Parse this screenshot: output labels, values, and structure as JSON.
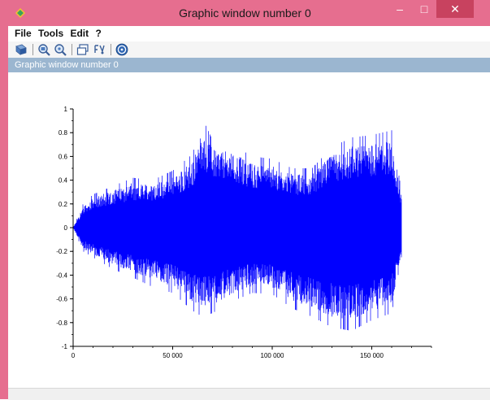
{
  "window": {
    "title": "Graphic window number 0",
    "minimize_glyph": "–",
    "maximize_glyph": "□",
    "close_glyph": "✕",
    "frame_color": "#e66e8f",
    "close_color": "#c8425f"
  },
  "menu": {
    "file": "File",
    "tools": "Tools",
    "edit": "Edit",
    "help": "?"
  },
  "toolbar": {
    "icons": [
      "rotate-icon",
      "zoom-in-icon",
      "zoom-out-icon",
      "window-icon",
      "data-tip-icon",
      "help-icon"
    ]
  },
  "figure": {
    "header": "Graphic window number 0",
    "header_color": "#9bb6d0"
  },
  "chart_data": {
    "type": "line",
    "series_color": "#0000ff",
    "xlim": [
      0,
      180000
    ],
    "ylim": [
      -1,
      1
    ],
    "x_ticks": [
      0,
      50000,
      100000,
      150000
    ],
    "x_tick_labels": [
      "0",
      "50 000",
      "100 000",
      "150 000"
    ],
    "y_ticks": [
      1,
      0.8,
      0.6,
      0.4,
      0.2,
      0,
      -0.2,
      -0.4,
      -0.6,
      -0.8,
      -1
    ],
    "y_tick_labels": [
      "1",
      "0.8",
      "0.6",
      "0.4",
      "0.2",
      "0",
      "-0.2",
      "-0.4",
      "-0.6",
      "-0.8",
      "-1"
    ],
    "n_samples": 165000,
    "envelope": {
      "x": [
        0,
        5000,
        10000,
        20000,
        30000,
        40000,
        50000,
        60000,
        65000,
        70000,
        80000,
        90000,
        100000,
        110000,
        120000,
        130000,
        140000,
        150000,
        160000,
        165000
      ],
      "upper": [
        0,
        0.2,
        0.28,
        0.35,
        0.42,
        0.4,
        0.48,
        0.62,
        0.92,
        0.74,
        0.7,
        0.6,
        0.58,
        0.5,
        0.5,
        0.68,
        0.76,
        0.78,
        0.82,
        0.3
      ],
      "lower": [
        0,
        -0.2,
        -0.25,
        -0.35,
        -0.42,
        -0.5,
        -0.55,
        -0.7,
        -0.75,
        -0.72,
        -0.62,
        -0.55,
        -0.56,
        -0.68,
        -0.75,
        -0.84,
        -0.87,
        -0.78,
        -0.72,
        -0.3
      ]
    },
    "grid": false,
    "legend": "none"
  }
}
